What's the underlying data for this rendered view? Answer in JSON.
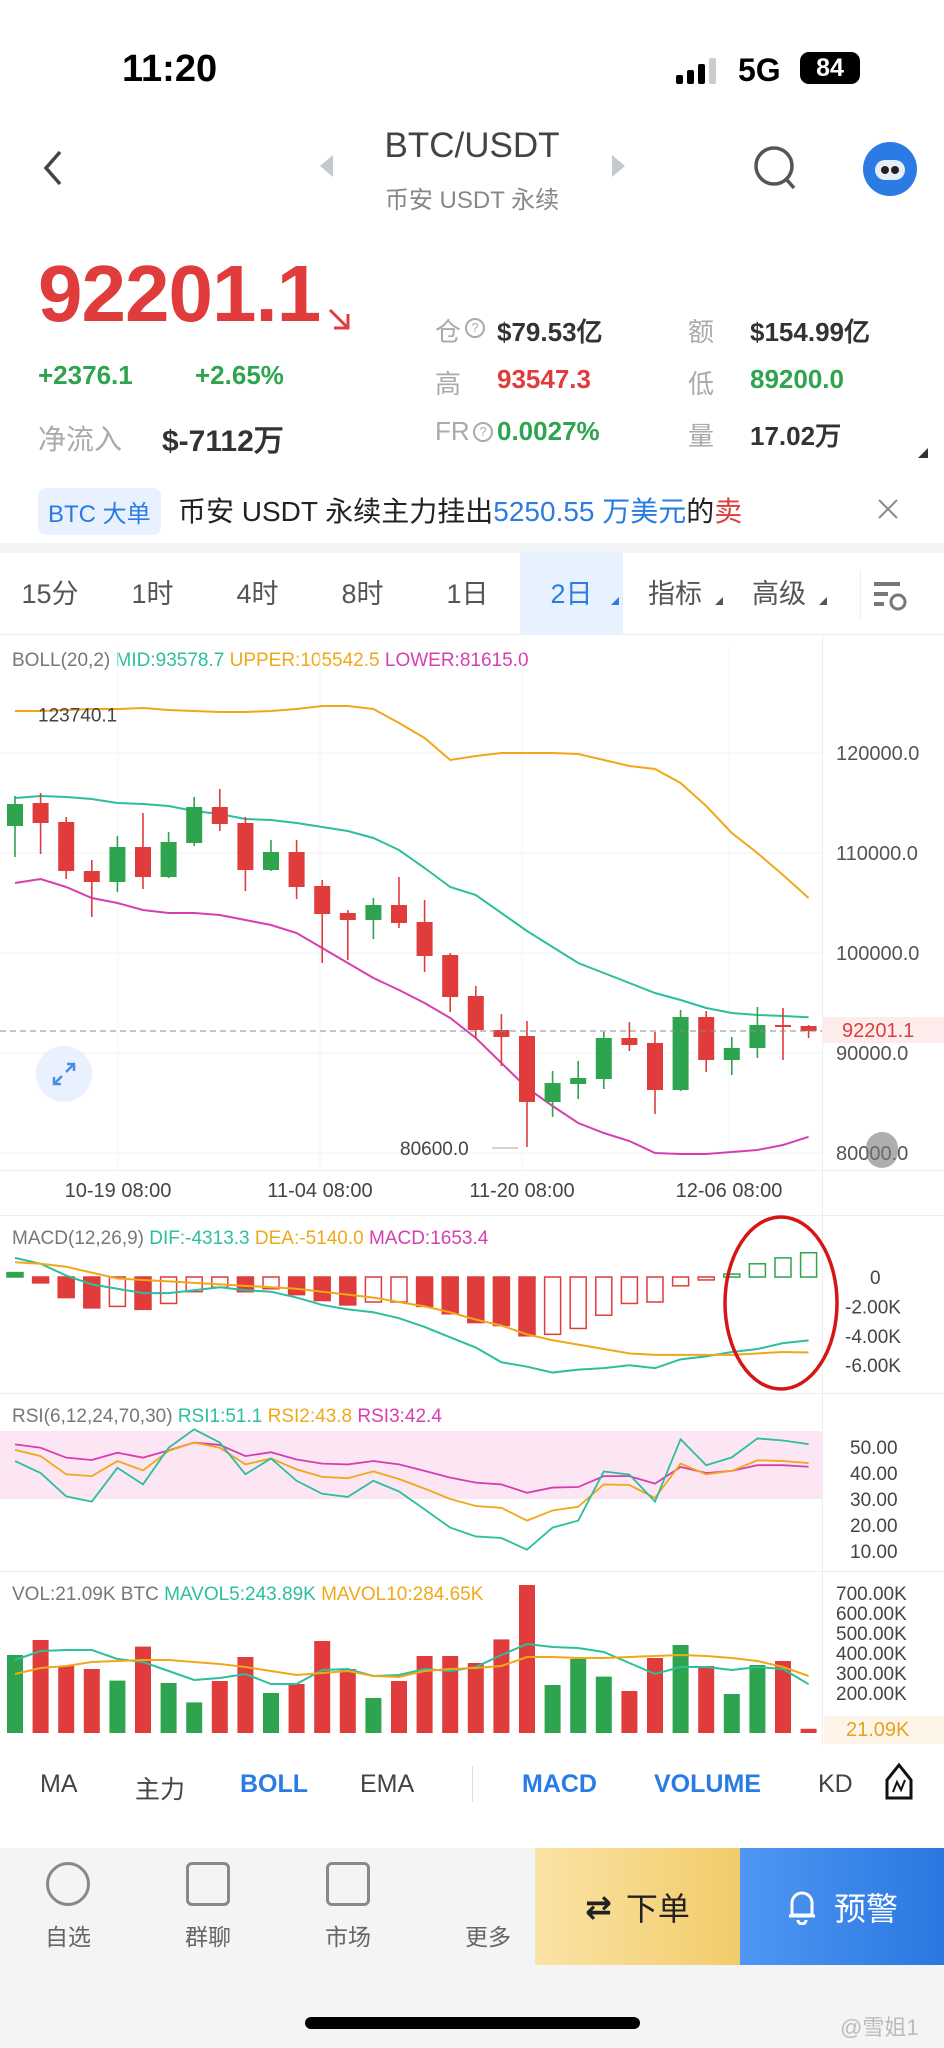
{
  "status": {
    "time": "11:20",
    "network": "5G",
    "battery": "84"
  },
  "header": {
    "title": "BTC/USDT",
    "subtitle": "币安 USDT 永续"
  },
  "ticker": {
    "price": "92201.1",
    "change": "+2376.1",
    "change_pct": "+2.65%",
    "net_inflow_label": "净流入",
    "net_inflow": "$-7112万",
    "stats": [
      {
        "label": "仓",
        "value": "$79.53亿",
        "color": "dark",
        "help": true
      },
      {
        "label": "额",
        "value": "$154.99亿",
        "color": "dark"
      },
      {
        "label": "高",
        "value": "93547.3",
        "color": "red"
      },
      {
        "label": "低",
        "value": "89200.0",
        "color": "green"
      },
      {
        "label": "FR",
        "value": "0.0027%",
        "color": "green",
        "help": true
      },
      {
        "label": "量",
        "value": "17.02万",
        "color": "dark"
      }
    ]
  },
  "news": {
    "badge": "BTC 大单",
    "text_a": "币安 USDT 永续主力挂出",
    "text_b": "5250.55 万美元",
    "text_c": "的",
    "text_d": "卖"
  },
  "timeframes": [
    "15分",
    "1时",
    "4时",
    "8时",
    "1日",
    "2日",
    "指标",
    "高级"
  ],
  "active_timeframe": "2日",
  "boll_legend": {
    "name": "BOLL(20,2)",
    "mid": "MID:93578.7",
    "upper": "UPPER:105542.5",
    "lower": "LOWER:81615.0"
  },
  "macd_legend": {
    "name": "MACD(12,26,9)",
    "dif": "DIF:-4313.3",
    "dea": "DEA:-5140.0",
    "macd": "MACD:1653.4"
  },
  "rsi_legend": {
    "name": "RSI(6,12,24,70,30)",
    "r1": "RSI1:51.1",
    "r2": "RSI2:43.8",
    "r3": "RSI3:42.4"
  },
  "vol_legend": {
    "name": "VOL:21.09K BTC",
    "ma5": "MAVOL5:243.89K",
    "ma10": "MAVOL10:284.65K",
    "current": "21.09K"
  },
  "indicators": [
    {
      "label": "MA",
      "active": false
    },
    {
      "label": "主力",
      "active": false
    },
    {
      "label": "BOLL",
      "active": true
    },
    {
      "label": "EMA",
      "active": false
    },
    {
      "label": "MACD",
      "active": true
    },
    {
      "label": "VOLUME",
      "active": true
    },
    {
      "label": "KD",
      "active": false
    }
  ],
  "bottom_nav": [
    {
      "label": "自选",
      "icon": "plus-circle-icon"
    },
    {
      "label": "群聊",
      "icon": "chat-icon"
    },
    {
      "label": "市场",
      "icon": "market-chart-icon"
    },
    {
      "label": "更多",
      "icon": "more-sliders-icon"
    }
  ],
  "order_button": "下单",
  "alert_button": "预警",
  "watermark": "@雪姐1",
  "colors": {
    "up": "#2ea44f",
    "down": "#e03c3c",
    "accent": "#2a7be4",
    "mid": "#2bbf9e",
    "upper": "#f0a818",
    "lower": "#d63fb0"
  },
  "chart_data": {
    "type": "candlestick",
    "x_labels": [
      "10-19 08:00",
      "11-04 08:00",
      "11-20 08:00",
      "12-06 08:00"
    ],
    "y_ticks": [
      "120000.0",
      "110000.0",
      "100000.0",
      "90000.0",
      "80000.0"
    ],
    "max_label": "123740.1",
    "min_label": "80600.0",
    "last_label": "92201.1",
    "ylim": [
      78500,
      125000
    ],
    "candles": [
      [
        112700,
        115700,
        109600,
        114900
      ],
      [
        115000,
        116000,
        109900,
        113000
      ],
      [
        113100,
        113600,
        107400,
        108200
      ],
      [
        108200,
        109300,
        103600,
        107100
      ],
      [
        107100,
        111700,
        106100,
        110600
      ],
      [
        110600,
        114000,
        106400,
        107600
      ],
      [
        107600,
        112100,
        107500,
        111100
      ],
      [
        111000,
        115600,
        110700,
        114600
      ],
      [
        114600,
        116400,
        112200,
        112900
      ],
      [
        113000,
        113600,
        106200,
        108300
      ],
      [
        108300,
        111300,
        108200,
        110100
      ],
      [
        110100,
        111300,
        105400,
        106600
      ],
      [
        106700,
        107300,
        99000,
        103900
      ],
      [
        104000,
        104300,
        99300,
        103300
      ],
      [
        103300,
        105500,
        101400,
        104800
      ],
      [
        104800,
        107600,
        102500,
        103000
      ],
      [
        103100,
        105300,
        98100,
        99700
      ],
      [
        99800,
        100000,
        94100,
        95600
      ],
      [
        95700,
        96700,
        91400,
        92300
      ],
      [
        92300,
        93900,
        88700,
        91600
      ],
      [
        91700,
        93200,
        80600,
        85100
      ],
      [
        85100,
        88200,
        83600,
        87000
      ],
      [
        86900,
        89200,
        85400,
        87500
      ],
      [
        87400,
        92100,
        86400,
        91500
      ],
      [
        91500,
        93100,
        90200,
        90800
      ],
      [
        91000,
        92100,
        83900,
        86300
      ],
      [
        86300,
        94300,
        86200,
        93600
      ],
      [
        93600,
        94200,
        88100,
        89300
      ],
      [
        89300,
        91600,
        87800,
        90500
      ],
      [
        90500,
        94600,
        89500,
        92800
      ],
      [
        92800,
        94500,
        89300,
        92600
      ],
      [
        92700,
        92800,
        91500,
        92201.1
      ]
    ],
    "boll_upper": [
      124200,
      124200,
      124300,
      124400,
      124400,
      124500,
      124300,
      124200,
      124100,
      124100,
      124200,
      124400,
      124700,
      124700,
      124400,
      123000,
      121500,
      119300,
      119700,
      120000,
      120000,
      120000,
      119900,
      119300,
      118700,
      118400,
      117000,
      114700,
      112000,
      110000,
      107800,
      105500
    ],
    "boll_mid": [
      115500,
      115700,
      115600,
      115400,
      115000,
      114900,
      114700,
      114200,
      113900,
      113400,
      113300,
      113000,
      112600,
      112200,
      111500,
      110300,
      108500,
      106600,
      105800,
      104000,
      102200,
      100600,
      99000,
      98000,
      97000,
      96000,
      95300,
      94500,
      94000,
      93800,
      93700,
      93578.7
    ],
    "boll_lower": [
      107000,
      107400,
      106600,
      105500,
      105000,
      104300,
      104000,
      104000,
      103800,
      103300,
      102800,
      102000,
      100500,
      99000,
      97500,
      96300,
      95000,
      93500,
      91500,
      89000,
      86500,
      84700,
      83000,
      82000,
      81200,
      80000,
      79900,
      79900,
      80100,
      80300,
      80800,
      81615
    ],
    "macd_hist": [
      0.3,
      -0.4,
      -1.4,
      -2.1,
      -2.0,
      -2.2,
      -1.8,
      -1.0,
      -0.7,
      -1.0,
      -0.8,
      -1.2,
      -1.6,
      -1.9,
      -1.7,
      -1.7,
      -2.0,
      -2.5,
      -3.1,
      -3.3,
      -4.0,
      -3.9,
      -3.5,
      -2.6,
      -1.8,
      -1.7,
      -0.6,
      -0.2,
      0.2,
      0.9,
      1.3,
      1.65
    ],
    "macd_hollow": [
      false,
      false,
      false,
      false,
      true,
      false,
      true,
      true,
      true,
      false,
      true,
      false,
      false,
      false,
      true,
      true,
      false,
      false,
      false,
      false,
      false,
      true,
      true,
      true,
      true,
      true,
      true,
      true,
      true,
      true,
      true,
      true
    ],
    "dif": [
      1.3,
      0.9,
      0.1,
      -0.5,
      -0.8,
      -1.1,
      -1.1,
      -0.9,
      -0.7,
      -0.9,
      -1.0,
      -1.4,
      -1.9,
      -2.2,
      -2.4,
      -2.8,
      -3.4,
      -4.1,
      -4.8,
      -5.8,
      -6.1,
      -6.5,
      -6.3,
      -6.2,
      -6.0,
      -6.2,
      -5.6,
      -5.4,
      -5.1,
      -4.9,
      -4.5,
      -4.31
    ],
    "dea": [
      1.0,
      0.9,
      0.7,
      0.3,
      -0.1,
      -0.2,
      -0.3,
      -0.4,
      -0.5,
      -0.6,
      -0.7,
      -0.8,
      -1.0,
      -1.2,
      -1.4,
      -1.7,
      -2.0,
      -2.4,
      -2.9,
      -3.3,
      -3.9,
      -4.3,
      -4.6,
      -4.9,
      -5.2,
      -5.3,
      -5.3,
      -5.3,
      -5.3,
      -5.2,
      -5.1,
      -5.14
    ],
    "macd_ticks": [
      "0",
      "-2.00K",
      "-4.00K",
      "-6.00K"
    ],
    "rsi1": [
      44.6,
      40,
      31,
      29,
      42,
      35.6,
      49.7,
      56.8,
      51.7,
      39.5,
      45.6,
      37,
      32,
      30.8,
      37,
      32.9,
      26,
      19,
      15.6,
      15,
      10.5,
      19,
      21.7,
      40.6,
      39.4,
      29,
      53,
      43,
      46,
      53.3,
      52.5,
      51.1
    ],
    "rsi2": [
      48.9,
      46.5,
      39.5,
      38.8,
      44.6,
      41,
      48.5,
      51.7,
      49.7,
      43.3,
      45.6,
      41.4,
      38.5,
      38,
      40.6,
      37.7,
      34,
      30,
      27.3,
      26.6,
      21.7,
      25.6,
      27,
      35.6,
      35.4,
      30.4,
      43.6,
      39.5,
      40.8,
      44.9,
      44.6,
      43.8
    ],
    "rsi3": [
      51,
      49.7,
      45.9,
      45,
      47.8,
      45.9,
      48.7,
      51.7,
      50.8,
      46.5,
      48,
      45.2,
      43.6,
      43.3,
      44.6,
      43.3,
      40.8,
      38.2,
      36.3,
      35.6,
      32.4,
      34.4,
      34.6,
      38.8,
      38.8,
      35.9,
      42.3,
      40,
      40.8,
      43,
      43,
      42.4
    ],
    "rsi_ticks": [
      "50.00",
      "40.00",
      "30.00",
      "20.00",
      "10.00"
    ],
    "rsi_band": [
      30,
      70
    ],
    "volume_k": [
      390,
      465,
      335,
      320,
      262,
      432,
      250,
      153,
      260,
      380,
      200,
      245,
      460,
      320,
      175,
      260,
      385,
      385,
      350,
      468,
      740,
      240,
      370,
      282,
      210,
      375,
      440,
      335,
      195,
      340,
      360,
      21.09
    ],
    "mavol5_k": [
      365,
      410,
      415,
      415,
      370,
      355,
      310,
      265,
      275,
      295,
      245,
      245,
      315,
      320,
      285,
      290,
      320,
      310,
      330,
      390,
      445,
      430,
      425,
      405,
      350,
      295,
      330,
      330,
      315,
      330,
      320,
      244
    ],
    "mavol10_k": [
      295,
      325,
      335,
      355,
      360,
      365,
      365,
      355,
      345,
      330,
      310,
      290,
      300,
      310,
      285,
      280,
      310,
      320,
      325,
      335,
      380,
      380,
      375,
      375,
      380,
      385,
      390,
      385,
      375,
      360,
      330,
      285
    ],
    "vol_ticks": [
      "700.00K",
      "600.00K",
      "500.00K",
      "400.00K",
      "300.00K",
      "200.00K"
    ]
  }
}
